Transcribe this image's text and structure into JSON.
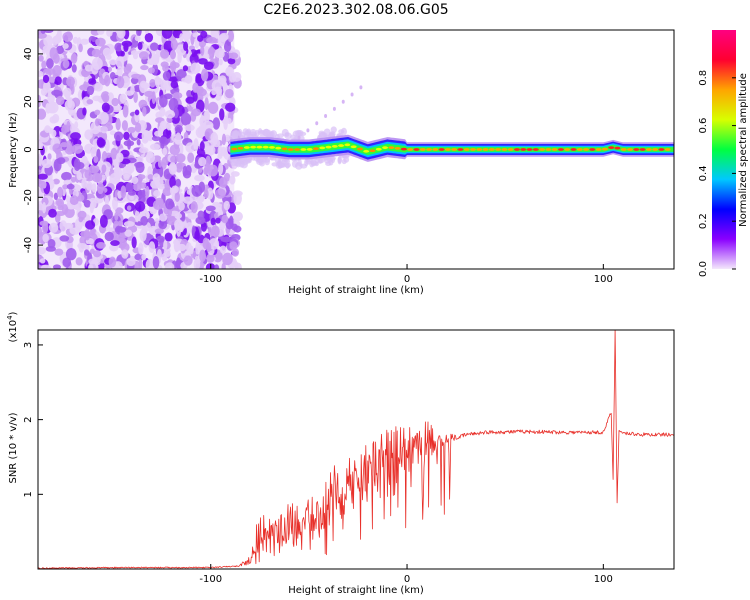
{
  "title": "C2E6.2023.302.08.06.G05",
  "chart_data": [
    {
      "type": "heatmap",
      "xlabel": "Height of straight line (km)",
      "ylabel": "Frequency (Hz)",
      "xlim": [
        -188,
        136
      ],
      "ylim": [
        -50,
        50
      ],
      "x_ticks": [
        -100,
        0,
        100
      ],
      "x_tick_labels": [
        "-100",
        "0",
        "100"
      ],
      "y_ticks": [
        -40,
        -20,
        0,
        20,
        40
      ],
      "y_tick_labels": [
        "-40",
        "-20",
        "0",
        "20",
        "40"
      ],
      "colorbar": {
        "label": "Normalized spectral amplitude",
        "range": [
          0,
          1
        ],
        "ticks": [
          0.0,
          0.2,
          0.4,
          0.6,
          0.8
        ],
        "tick_labels": [
          "0.0",
          "0.2",
          "0.4",
          "0.6",
          "0.8"
        ],
        "colors": [
          "#f4e8fb",
          "#8a00ff",
          "#0000ff",
          "#00c8ff",
          "#00ff40",
          "#d8ff00",
          "#ffa500",
          "#ff0030",
          "#ff0080"
        ]
      },
      "signal_track": {
        "x": [
          -90,
          -80,
          -70,
          -60,
          -50,
          -40,
          -30,
          -20,
          -10,
          0,
          20,
          40,
          60,
          80,
          100,
          105,
          110,
          136
        ],
        "freq": [
          0,
          1,
          1,
          0,
          0,
          1,
          2,
          -1,
          1,
          0,
          0,
          0,
          0,
          0,
          0,
          1,
          0,
          0
        ]
      },
      "noise_region_x": [
        -188,
        -88
      ]
    },
    {
      "type": "line",
      "xlabel": "Height of straight line (km)",
      "ylabel": "SNR (10 * v/v)",
      "y_multiplier": "(x10",
      "y_multiplier_exp": "4",
      "y_multiplier_close": ")",
      "xlim": [
        -188,
        136
      ],
      "ylim": [
        0,
        3.2
      ],
      "x_ticks": [
        -100,
        0,
        100
      ],
      "x_tick_labels": [
        "-100",
        "0",
        "100"
      ],
      "y_ticks": [
        1,
        2,
        3
      ],
      "y_tick_labels": [
        "1",
        "2",
        "3"
      ],
      "color": "#e8302a",
      "x": [
        -188,
        -140,
        -100,
        -85,
        -80,
        -75,
        -70,
        -65,
        -60,
        -55,
        -50,
        -45,
        -40,
        -35,
        -30,
        -25,
        -20,
        -15,
        -10,
        -5,
        0,
        5,
        10,
        15,
        20,
        30,
        40,
        60,
        80,
        100,
        104,
        105,
        106,
        107,
        108,
        110,
        120,
        136
      ],
      "y": [
        0.01,
        0.02,
        0.02,
        0.04,
        0.1,
        0.3,
        0.4,
        0.35,
        0.45,
        0.5,
        0.55,
        0.6,
        0.7,
        0.8,
        0.9,
        1.0,
        1.1,
        1.2,
        1.3,
        1.4,
        1.4,
        1.5,
        1.55,
        1.6,
        1.7,
        1.8,
        1.83,
        1.84,
        1.83,
        1.83,
        2.1,
        1.2,
        3.2,
        0.9,
        1.85,
        1.82,
        1.8,
        1.8
      ],
      "y_peaks": [
        0.02,
        0.02,
        0.03,
        0.06,
        0.2,
        0.8,
        0.7,
        0.7,
        0.9,
        0.85,
        0.95,
        1.0,
        1.4,
        1.5,
        1.5,
        1.6,
        1.7,
        1.9,
        1.9,
        1.95,
        1.95,
        1.9,
        2.05,
        1.8,
        1.8,
        1.85,
        1.86,
        1.87,
        1.86,
        1.87,
        2.2,
        1.2,
        3.2,
        0.9,
        1.87,
        1.84,
        1.82,
        1.82
      ]
    }
  ]
}
